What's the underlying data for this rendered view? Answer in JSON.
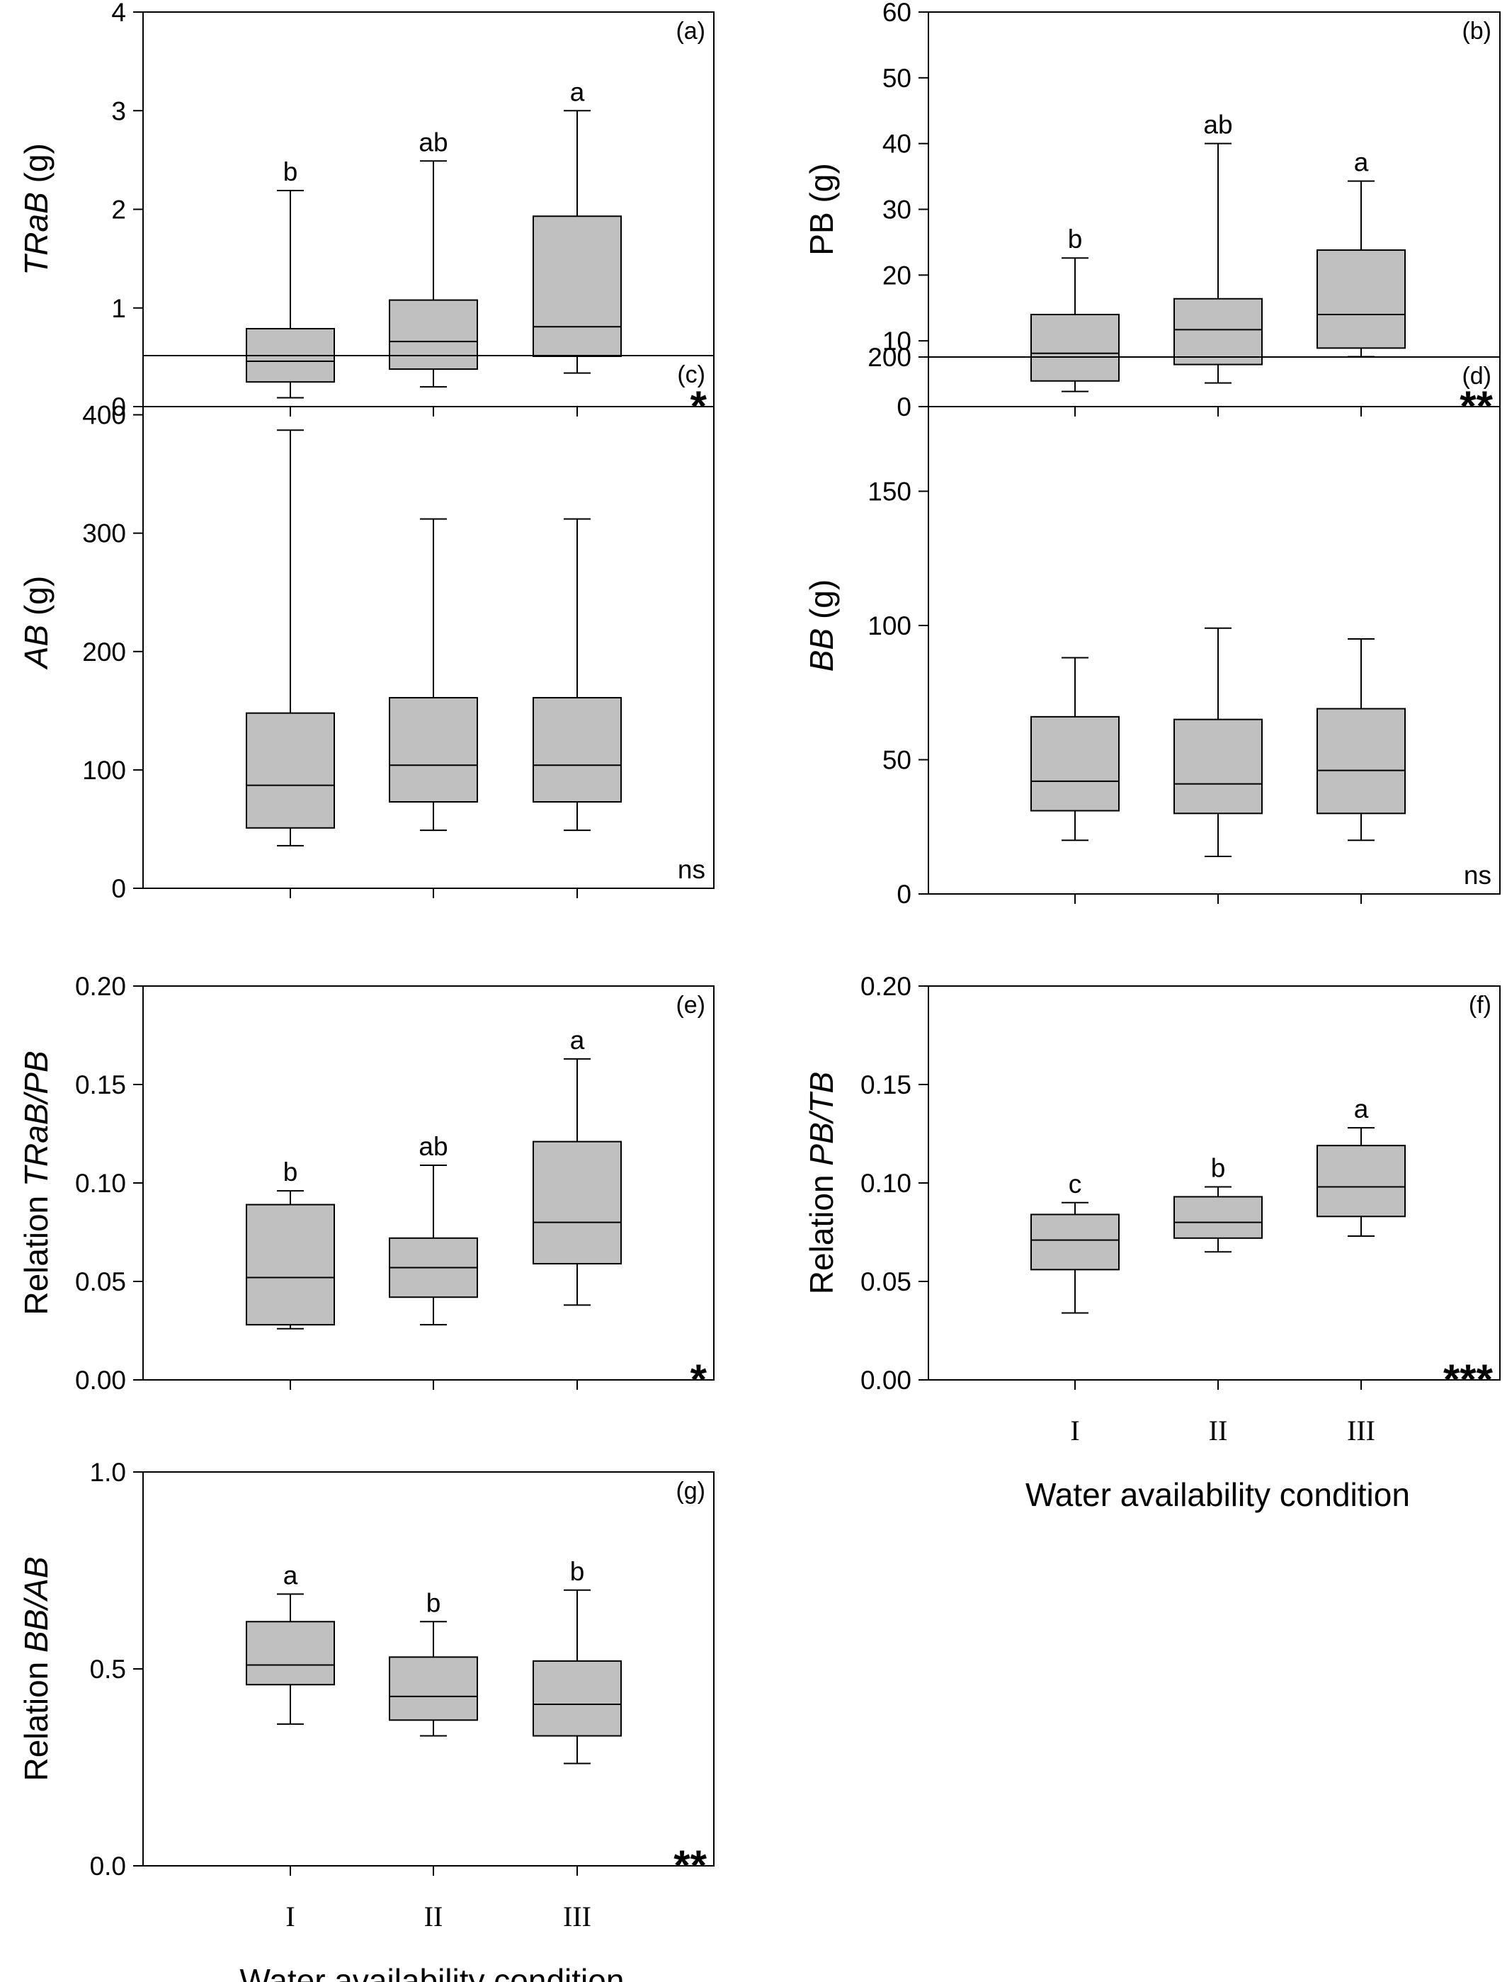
{
  "figure": {
    "background": "#ffffff",
    "box_fill": "#c0c0c0",
    "line_color": "#000000"
  },
  "chart_data": [
    {
      "type": "boxplot",
      "panel": "(a)",
      "ylabel_plain": "",
      "ylabel_italic": "TRaB",
      "ylabel_suffix": " (g)",
      "ylim": [
        0,
        4
      ],
      "yticks": [
        0,
        1,
        2,
        3,
        4
      ],
      "ytick_labels": [
        "0",
        "1",
        "2",
        "3",
        "4"
      ],
      "categories": [
        "I",
        "II",
        "III"
      ],
      "show_categories": false,
      "xlabel": "",
      "boxes": [
        {
          "whisker_low": 0.09,
          "q1": 0.25,
          "median": 0.46,
          "q3": 0.79,
          "whisker_high": 2.19,
          "letter": "b"
        },
        {
          "whisker_low": 0.2,
          "q1": 0.38,
          "median": 0.66,
          "q3": 1.08,
          "whisker_high": 2.49,
          "letter": "ab"
        },
        {
          "whisker_low": 0.34,
          "q1": 0.51,
          "median": 0.81,
          "q3": 1.93,
          "whisker_high": 3.0,
          "letter": "a"
        }
      ],
      "significance": "*"
    },
    {
      "type": "boxplot",
      "panel": "(b)",
      "ylabel_plain": "PB",
      "ylabel_italic": "",
      "ylabel_suffix": " (g)",
      "ylim": [
        0,
        60
      ],
      "yticks": [
        0,
        10,
        20,
        30,
        40,
        50,
        60
      ],
      "ytick_labels": [
        "0",
        "10",
        "20",
        "30",
        "40",
        "50",
        "60"
      ],
      "categories": [
        "I",
        "II",
        "III"
      ],
      "show_categories": false,
      "xlabel": "",
      "boxes": [
        {
          "whisker_low": 2.3,
          "q1": 3.9,
          "median": 8.1,
          "q3": 14.0,
          "whisker_high": 22.6,
          "letter": "b"
        },
        {
          "whisker_low": 3.6,
          "q1": 6.4,
          "median": 11.7,
          "q3": 16.4,
          "whisker_high": 40.0,
          "letter": "ab"
        },
        {
          "whisker_low": 7.6,
          "q1": 8.9,
          "median": 14.0,
          "q3": 23.8,
          "whisker_high": 34.3,
          "letter": "a"
        }
      ],
      "significance": "**"
    },
    {
      "type": "boxplot",
      "panel": "(c)",
      "ylabel_plain": "",
      "ylabel_italic": "AB",
      "ylabel_suffix": " (g)",
      "ylim": [
        0,
        450
      ],
      "yticks": [
        0,
        100,
        200,
        300,
        400
      ],
      "ytick_labels": [
        "0",
        "100",
        "200",
        "300",
        "400"
      ],
      "categories": [
        "I",
        "II",
        "III"
      ],
      "show_categories": false,
      "xlabel": "",
      "boxes": [
        {
          "whisker_low": 36,
          "q1": 51,
          "median": 87,
          "q3": 148,
          "whisker_high": 387,
          "letter": ""
        },
        {
          "whisker_low": 49,
          "q1": 73,
          "median": 104,
          "q3": 161,
          "whisker_high": 312,
          "letter": ""
        },
        {
          "whisker_low": 49,
          "q1": 73,
          "median": 104,
          "q3": 161,
          "whisker_high": 312,
          "letter": ""
        }
      ],
      "significance": "ns"
    },
    {
      "type": "boxplot",
      "panel": "(d)",
      "ylabel_plain": "",
      "ylabel_italic": "BB",
      "ylabel_suffix": " (g)",
      "ylim": [
        0,
        200
      ],
      "yticks": [
        0,
        50,
        100,
        150,
        200
      ],
      "ytick_labels": [
        "0",
        "50",
        "100",
        "150",
        "200"
      ],
      "categories": [
        "I",
        "II",
        "III"
      ],
      "show_categories": false,
      "xlabel": "",
      "boxes": [
        {
          "whisker_low": 20,
          "q1": 31,
          "median": 42,
          "q3": 66,
          "whisker_high": 88,
          "letter": ""
        },
        {
          "whisker_low": 14,
          "q1": 30,
          "median": 41,
          "q3": 65,
          "whisker_high": 99,
          "letter": ""
        },
        {
          "whisker_low": 20,
          "q1": 30,
          "median": 46,
          "q3": 69,
          "whisker_high": 95,
          "letter": ""
        }
      ],
      "significance": "ns"
    },
    {
      "type": "boxplot",
      "panel": "(e)",
      "ylabel_plain": "Relation ",
      "ylabel_italic": "TRaB/PB",
      "ylabel_suffix": "",
      "ylim": [
        0,
        0.2
      ],
      "yticks": [
        0,
        0.05,
        0.1,
        0.15,
        0.2
      ],
      "ytick_labels": [
        "0.00",
        "0.05",
        "0.10",
        "0.15",
        "0.20"
      ],
      "categories": [
        "I",
        "II",
        "III"
      ],
      "show_categories": false,
      "xlabel": "",
      "boxes": [
        {
          "whisker_low": 0.026,
          "q1": 0.028,
          "median": 0.052,
          "q3": 0.089,
          "whisker_high": 0.096,
          "letter": "b"
        },
        {
          "whisker_low": 0.028,
          "q1": 0.042,
          "median": 0.057,
          "q3": 0.072,
          "whisker_high": 0.109,
          "letter": "ab"
        },
        {
          "whisker_low": 0.038,
          "q1": 0.059,
          "median": 0.08,
          "q3": 0.121,
          "whisker_high": 0.163,
          "letter": "a"
        }
      ],
      "significance": "*"
    },
    {
      "type": "boxplot",
      "panel": "(f)",
      "ylabel_plain": "Relation ",
      "ylabel_italic": "PB/TB",
      "ylabel_suffix": "",
      "ylim": [
        0,
        0.2
      ],
      "yticks": [
        0,
        0.05,
        0.1,
        0.15,
        0.2
      ],
      "ytick_labels": [
        "0.00",
        "0.05",
        "0.10",
        "0.15",
        "0.20"
      ],
      "categories": [
        "I",
        "II",
        "III"
      ],
      "show_categories": true,
      "xlabel": "Water availability condition",
      "boxes": [
        {
          "whisker_low": 0.034,
          "q1": 0.056,
          "median": 0.071,
          "q3": 0.084,
          "whisker_high": 0.09,
          "letter": "c"
        },
        {
          "whisker_low": 0.065,
          "q1": 0.072,
          "median": 0.08,
          "q3": 0.093,
          "whisker_high": 0.098,
          "letter": "b"
        },
        {
          "whisker_low": 0.073,
          "q1": 0.083,
          "median": 0.098,
          "q3": 0.119,
          "whisker_high": 0.128,
          "letter": "a"
        }
      ],
      "significance": "***"
    },
    {
      "type": "boxplot",
      "panel": "(g)",
      "ylabel_plain": "Relation ",
      "ylabel_italic": "BB/AB",
      "ylabel_suffix": "",
      "ylim": [
        0,
        1
      ],
      "yticks": [
        0,
        0.5,
        1
      ],
      "ytick_labels": [
        "0.0",
        "0.5",
        "1.0"
      ],
      "categories": [
        "I",
        "II",
        "III"
      ],
      "show_categories": true,
      "xlabel": "Water availability condition",
      "boxes": [
        {
          "whisker_low": 0.36,
          "q1": 0.46,
          "median": 0.51,
          "q3": 0.62,
          "whisker_high": 0.69,
          "letter": "a"
        },
        {
          "whisker_low": 0.33,
          "q1": 0.37,
          "median": 0.43,
          "q3": 0.53,
          "whisker_high": 0.62,
          "letter": "b"
        },
        {
          "whisker_low": 0.26,
          "q1": 0.33,
          "median": 0.41,
          "q3": 0.52,
          "whisker_high": 0.7,
          "letter": "b"
        }
      ],
      "significance": "**"
    }
  ]
}
